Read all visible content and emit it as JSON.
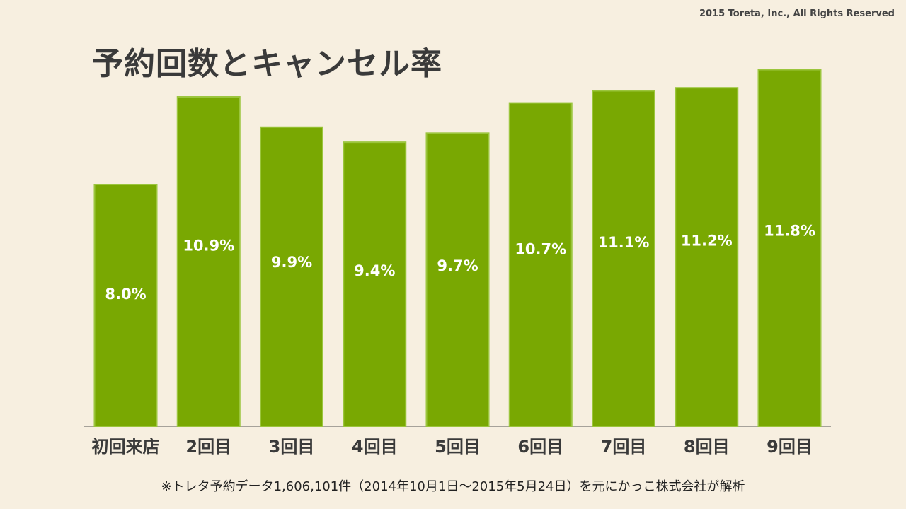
{
  "copyright": "2015 Toreta, Inc., All Rights Reserved",
  "title": "予約回数とキャンセル率",
  "footnote": "※トレタ予約データ1,606,101件（2014年10月1日〜2015年5月24日）を元にかっこ株式会社が解析",
  "colors": {
    "background": "#f7efe0",
    "bar_fill": "#79a802",
    "bar_stroke": "#9bc53d",
    "value_label": "#ffffff",
    "axis_label": "#3a3a3a"
  },
  "chart_data": {
    "type": "bar",
    "title": "予約回数とキャンセル率",
    "xlabel": "",
    "ylabel": "",
    "categories": [
      "初回来店",
      "2回目",
      "3回目",
      "4回目",
      "5回目",
      "6回目",
      "7回目",
      "8回目",
      "9回目"
    ],
    "values": [
      8.0,
      10.9,
      9.9,
      9.4,
      9.7,
      10.7,
      11.1,
      11.2,
      11.8
    ],
    "value_labels": [
      "8.0%",
      "10.9%",
      "9.9%",
      "9.4%",
      "9.7%",
      "10.7%",
      "11.1%",
      "11.2%",
      "11.8%"
    ],
    "ylim": [
      0,
      12.0
    ],
    "grid": false,
    "legend": "none"
  }
}
